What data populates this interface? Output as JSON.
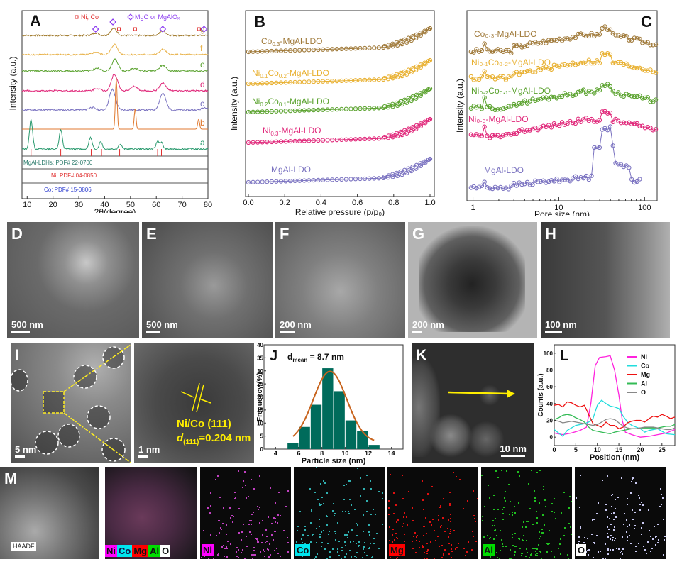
{
  "figure": {
    "panels": [
      "A",
      "B",
      "C",
      "D",
      "E",
      "F",
      "G",
      "H",
      "I",
      "J",
      "K",
      "L",
      "M"
    ]
  },
  "chart_data": [
    {
      "id": "A",
      "type": "line",
      "title": "A",
      "xlabel": "2θ(degree)",
      "ylabel": "Intensity (a.u.)",
      "xlim": [
        8,
        80
      ],
      "xticks": [
        10,
        20,
        30,
        40,
        50,
        60,
        70,
        80
      ],
      "legend": {
        "ni_co": "Ni, Co",
        "mgo": "MgO or MgAlOₓ"
      },
      "series": [
        {
          "name": "g",
          "color": "#a07a2c",
          "peaks": [
            [
              36.5,
              0.2
            ],
            [
              43.5,
              0.55
            ],
            [
              62.5,
              0.35
            ]
          ]
        },
        {
          "name": "f",
          "color": "#e8b24a",
          "peaks": [
            [
              36.5,
              0.2
            ],
            [
              43.8,
              0.8
            ],
            [
              62.5,
              0.4
            ]
          ]
        },
        {
          "name": "e",
          "color": "#5aa22e",
          "peaks": [
            [
              37,
              0.2
            ],
            [
              44,
              0.9
            ],
            [
              51.5,
              0.2
            ],
            [
              62.5,
              0.45
            ]
          ]
        },
        {
          "name": "d",
          "color": "#e0287a",
          "peaks": [
            [
              37,
              0.2
            ],
            [
              43.8,
              1.3
            ],
            [
              51.5,
              0.35
            ],
            [
              62.5,
              0.6
            ]
          ]
        },
        {
          "name": "c",
          "color": "#7a72c0",
          "peaks": [
            [
              35,
              0.2
            ],
            [
              43,
              1.6
            ],
            [
              62.5,
              1.3
            ],
            [
              79,
              0.2
            ]
          ]
        },
        {
          "name": "b",
          "color": "#e07a30",
          "peaks": [
            [
              44.5,
              4.0
            ],
            [
              51.8,
              1.6
            ],
            [
              76.4,
              0.8
            ]
          ]
        },
        {
          "name": "a",
          "color": "#2a9a6e",
          "peaks": [
            [
              11.5,
              2.3
            ],
            [
              23,
              1.5
            ],
            [
              34.5,
              0.9
            ],
            [
              38.5,
              0.6
            ],
            [
              46,
              0.4
            ],
            [
              60.5,
              0.6
            ],
            [
              62,
              0.5
            ]
          ]
        }
      ],
      "references": [
        {
          "label": "MgAl-LDHs: PDF# 22-0700",
          "color": "#2a7a6a",
          "sticks": [
            11.5,
            23,
            34.8,
            38.8,
            45.8,
            60.5,
            62
          ]
        },
        {
          "label": "Ni: PDF# 04-0850",
          "color": "#e03030",
          "sticks": [
            44.5,
            51.8,
            76.4
          ]
        },
        {
          "label": "Co: PDF# 15-0806",
          "color": "#3040d0",
          "sticks": [
            44.2,
            51.5,
            75.8
          ]
        }
      ],
      "markers": {
        "ni_co_x": [
          45.5,
          51.8,
          76.5
        ],
        "mgo_x": [
          36.5,
          43.2,
          62.5,
          78.5
        ]
      }
    },
    {
      "id": "B",
      "type": "scatter",
      "title": "B",
      "xlabel": "Relative pressure (p/p₀)",
      "ylabel": "Intensity (a.u.)",
      "xlim": [
        0,
        1
      ],
      "xticks": [
        "0.0",
        "0.2",
        "0.4",
        "0.6",
        "0.8",
        "1.0"
      ],
      "series": [
        {
          "name": "Co₀.₃-MgAl-LDO",
          "label_main": "Co",
          "sub1": "0.3",
          "rest": "-MgAl-LDO",
          "color": "#a07a3a"
        },
        {
          "name": "Ni₀.₁Co₀.₂-MgAl-LDO",
          "label_main": "Ni",
          "sub1": "0.1",
          "mid": "Co",
          "sub2": "0.2",
          "rest": "-MgAl-LDO",
          "color": "#e8b030"
        },
        {
          "name": "Ni₀.₂Co₀.₁-MgAl-LDO",
          "label_main": "Ni",
          "sub1": "0.2",
          "mid": "Co",
          "sub2": "0.1",
          "rest": "-MgAl-LDO",
          "color": "#5aa22e"
        },
        {
          "name": "Ni₀.₃-MgAl-LDO",
          "label_main": "Ni",
          "sub1": "0.3",
          "rest": "-MgAl-LDO",
          "color": "#e0287a"
        },
        {
          "name": "MgAl-LDO",
          "label_main": "MgAl-LDO",
          "color": "#7a72c0"
        }
      ]
    },
    {
      "id": "C",
      "type": "line",
      "title": "C",
      "xlabel": "Pore size (nm)",
      "ylabel": "Intensity (a.u.)",
      "xscale": "log",
      "xlim": [
        0.85,
        140
      ],
      "xticks": [
        "1",
        "10",
        "100"
      ],
      "series": [
        {
          "name": "Co₀.₃-MgAl-LDO",
          "color": "#a07a3a"
        },
        {
          "name": "Ni₀.₁Co₀.₂-MgAl-LDO",
          "color": "#e8b030"
        },
        {
          "name": "Ni₀.₂Co₀.₁-MgAl-LDO",
          "color": "#5aa22e"
        },
        {
          "name": "Ni₀.₃-MgAl-LDO",
          "color": "#e0287a"
        },
        {
          "name": "MgAl-LDO",
          "color": "#7a72c0"
        }
      ]
    },
    {
      "id": "J",
      "type": "bar",
      "title": "J",
      "annotation": "= 8.7 nm",
      "annotation_prefix": "d",
      "annotation_sub": "mean",
      "xlabel": "Particle size (nm)",
      "ylabel": "Frequency (%)",
      "xlim": [
        3,
        15
      ],
      "ylim": [
        0,
        40
      ],
      "xticks": [
        "4",
        "6",
        "8",
        "10",
        "12",
        "14"
      ],
      "yticks": [
        "0",
        "5",
        "10",
        "15",
        "20",
        "25",
        "30",
        "35",
        "40"
      ],
      "categories": [
        5.5,
        6.5,
        7.5,
        8.5,
        9.5,
        10.5,
        11.5,
        12.5
      ],
      "values": [
        2.3,
        8.5,
        17,
        31,
        22.2,
        11,
        7,
        1.6
      ],
      "fit": {
        "type": "gaussian",
        "mean": 8.7,
        "sigma": 1.45,
        "peak": 29.8,
        "range": [
          5.5,
          12.5
        ]
      },
      "bar_color": "#006b5b",
      "fit_color": "#c8641e"
    },
    {
      "id": "L",
      "type": "line",
      "title": "L",
      "xlabel": "Position (nm)",
      "ylabel": "Counts (a.u.)",
      "xlim": [
        0,
        28
      ],
      "ylim": [
        -10,
        110
      ],
      "xticks": [
        "0",
        "5",
        "10",
        "15",
        "20",
        "25"
      ],
      "yticks": [
        "0",
        "20",
        "40",
        "60",
        "80",
        "100"
      ],
      "series": [
        {
          "name": "Ni",
          "color": "#ff22dd",
          "x": [
            0,
            2,
            4,
            6,
            7.5,
            8.5,
            9.5,
            10.5,
            12,
            13,
            14,
            15,
            15.8,
            16.5,
            18,
            20,
            22,
            24,
            26,
            28
          ],
          "y": [
            5,
            3,
            5,
            8,
            12,
            40,
            85,
            95,
            96,
            97,
            80,
            50,
            20,
            6,
            3,
            0,
            1,
            3,
            5,
            9
          ]
        },
        {
          "name": "Co",
          "color": "#22dddd",
          "x": [
            0,
            1,
            2,
            3,
            5,
            7,
            8,
            9,
            10,
            11,
            12,
            13,
            14,
            15,
            16,
            17,
            18,
            20,
            21,
            22,
            24,
            26,
            28
          ],
          "y": [
            9,
            5,
            1,
            8,
            14,
            16,
            18,
            22,
            38,
            44,
            40,
            37,
            36,
            34,
            25,
            18,
            14,
            10,
            6,
            8,
            10,
            4,
            3
          ]
        },
        {
          "name": "Mg",
          "color": "#ee1111",
          "x": [
            0,
            1,
            2,
            3,
            4,
            5,
            6,
            7,
            8,
            9,
            10,
            11,
            12,
            13,
            14,
            15,
            16,
            17,
            18,
            19,
            20,
            21,
            22,
            23,
            24,
            25,
            26,
            27,
            28
          ],
          "y": [
            38,
            39,
            36,
            42,
            41,
            38,
            36,
            38,
            27,
            16,
            14,
            12,
            18,
            14,
            14,
            10,
            12,
            17,
            19,
            20,
            20,
            18,
            22,
            25,
            24,
            27,
            25,
            22,
            24
          ]
        },
        {
          "name": "Al",
          "color": "#33bb55",
          "x": [
            0,
            1,
            2,
            3,
            4,
            5,
            6,
            7,
            8,
            9,
            10,
            11,
            12,
            13,
            14,
            15,
            16,
            17,
            18,
            19,
            20,
            21,
            22,
            23,
            24,
            25,
            26,
            27,
            28
          ],
          "y": [
            21,
            23,
            26,
            27,
            26,
            23,
            21,
            18,
            12,
            8,
            7,
            6,
            5,
            4,
            6,
            7,
            8,
            9,
            10,
            10,
            11,
            11,
            11,
            11,
            11,
            12,
            13,
            13,
            15
          ]
        },
        {
          "name": "O",
          "color": "#888888",
          "x": [
            0,
            1,
            2,
            3,
            4,
            5,
            6,
            7,
            8,
            9,
            10,
            11,
            12,
            13,
            14,
            15,
            16,
            17,
            18,
            19,
            20,
            21,
            22,
            23,
            24,
            25,
            26,
            27,
            28
          ],
          "y": [
            20,
            19,
            17,
            18,
            19,
            18,
            17,
            16,
            15,
            14,
            15,
            18,
            21,
            22,
            21,
            17,
            13,
            11,
            10,
            10,
            11,
            12,
            12,
            12,
            11,
            10,
            9,
            9,
            11
          ]
        }
      ]
    }
  ],
  "micrographs": {
    "D": {
      "label": "D",
      "scale": "500 nm"
    },
    "E": {
      "label": "E",
      "scale": "500 nm"
    },
    "F": {
      "label": "F",
      "scale": "200 nm"
    },
    "G": {
      "label": "G",
      "scale": "200 nm"
    },
    "H": {
      "label": "H",
      "scale": "100 nm"
    },
    "I": {
      "label": "I",
      "scale": "5 nm"
    },
    "I2": {
      "scale": "1 nm",
      "annotation_line1": "Ni/Co (111)",
      "annotation_d": "d",
      "annotation_sub": "(111)",
      "annotation_rest": "=0.204 nm"
    },
    "K": {
      "label": "K",
      "scale": "10 nm"
    },
    "M": {
      "label": "M",
      "haadf": "HAADF",
      "overlay_tags": [
        {
          "text": "Ni",
          "bg": "#ff00ff"
        },
        {
          "text": "Co",
          "bg": "#00e5ee"
        },
        {
          "text": "Mg",
          "bg": "#ff0000"
        },
        {
          "text": "Al",
          "bg": "#00dd00"
        },
        {
          "text": "O",
          "bg": "#ffffff"
        }
      ],
      "maps": [
        {
          "text": "Ni",
          "tag_bg": "#ff00ff",
          "dot": "#c040c0"
        },
        {
          "text": "Co",
          "tag_bg": "#00e5ee",
          "dot": "#30b0b0"
        },
        {
          "text": "Mg",
          "tag_bg": "#ff0000",
          "dot": "#e01010"
        },
        {
          "text": "Al",
          "tag_bg": "#00dd00",
          "dot": "#20c020"
        },
        {
          "text": "O",
          "tag_bg": "#ffffff",
          "dot": "#c8c8f0"
        }
      ]
    }
  }
}
